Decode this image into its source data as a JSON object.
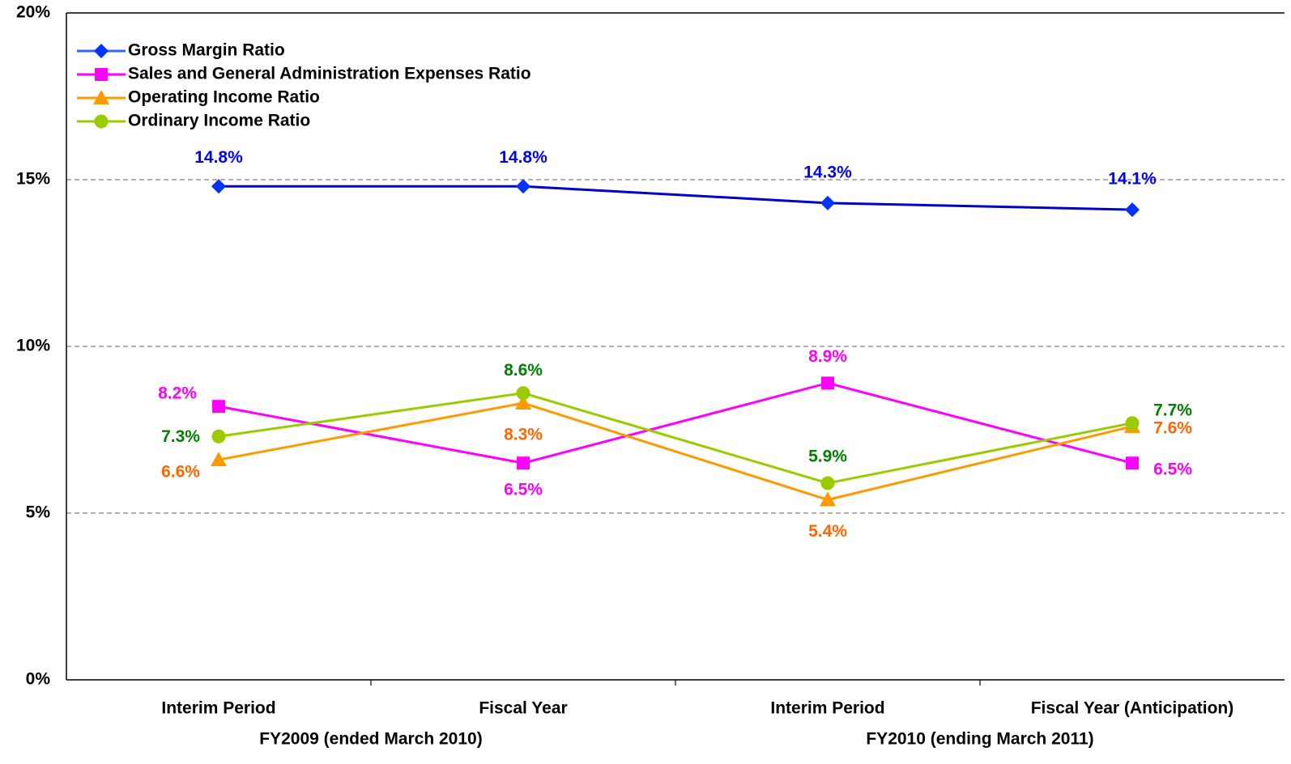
{
  "chart_data": {
    "type": "line",
    "categories": [
      "Interim Period",
      "Fiscal Year",
      "Interim Period",
      "Fiscal Year (Anticipation)"
    ],
    "groups": [
      {
        "label": "FY2009 (ended March 2010)",
        "span": [
          0,
          1
        ]
      },
      {
        "label": "FY2010 (ending March 2011)",
        "span": [
          2,
          3
        ]
      }
    ],
    "ylim": [
      0,
      20
    ],
    "yticks": [
      {
        "value": 0,
        "label": "0%"
      },
      {
        "value": 5,
        "label": "5%"
      },
      {
        "value": 10,
        "label": "10%"
      },
      {
        "value": 15,
        "label": "15%"
      },
      {
        "value": 20,
        "label": "20%"
      }
    ],
    "grid": true,
    "legend": "upper left",
    "series": [
      {
        "name": "Gross Margin Ratio",
        "color": "#0000cc",
        "marker_color": "#0033ff",
        "legend_color": "#3366ff",
        "label_color": "#0000ff",
        "marker": "diamond",
        "values": [
          14.8,
          14.8,
          14.3,
          14.1
        ],
        "value_labels": [
          "14.8%",
          "14.8%",
          "14.3%",
          "14.1%"
        ]
      },
      {
        "name": "Sales and General Administration Expenses Ratio",
        "color": "#ff00ff",
        "marker_color": "#ff00ff",
        "legend_color": "#ff00ff",
        "label_color": "#ff00ff",
        "marker": "square",
        "values": [
          8.2,
          6.5,
          8.9,
          6.5
        ],
        "value_labels": [
          "8.2%",
          "6.5%",
          "8.9%",
          "6.5%"
        ]
      },
      {
        "name": "Operating Income Ratio",
        "color": "#ff9900",
        "marker_color": "#ff9900",
        "legend_color": "#ff9900",
        "label_color": "#ff6600",
        "marker": "triangle",
        "values": [
          6.6,
          8.3,
          5.4,
          7.6
        ],
        "value_labels": [
          "6.6%",
          "8.3%",
          "5.4%",
          "7.6%"
        ]
      },
      {
        "name": "Ordinary Income Ratio",
        "color": "#99cc00",
        "marker_color": "#99cc00",
        "legend_color": "#99cc00",
        "label_color": "#008000",
        "marker": "circle",
        "values": [
          7.3,
          8.6,
          5.9,
          7.7
        ],
        "value_labels": [
          "7.3%",
          "8.6%",
          "5.9%",
          "7.7%"
        ]
      }
    ]
  }
}
